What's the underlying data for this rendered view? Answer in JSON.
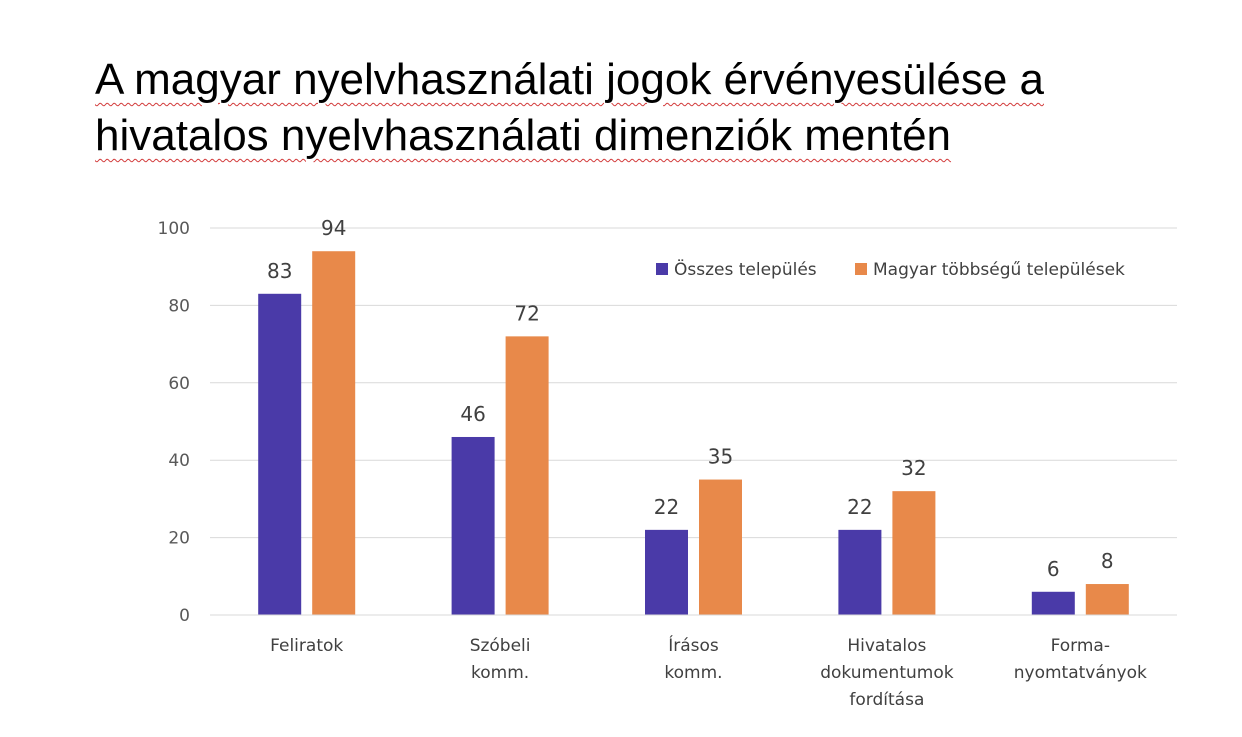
{
  "title_lines": [
    "A magyar nyelvhasználati jogok érvényesülése a",
    "hivatalos nyelvhasználati dimenziók mentén"
  ],
  "chart_data": {
    "type": "bar",
    "categories": [
      [
        "Feliratok"
      ],
      [
        "Szóbeli",
        "komm."
      ],
      [
        "Írásos",
        "komm."
      ],
      [
        "Hivatalos",
        "dokumentumok",
        "fordítása"
      ],
      [
        "Forma-",
        "nyomtatványok"
      ]
    ],
    "series": [
      {
        "name": "Összes település",
        "color": "#4a3aa8",
        "values": [
          83,
          46,
          22,
          22,
          6
        ]
      },
      {
        "name": "Magyar többségű települések",
        "color": "#e8894a",
        "values": [
          94,
          72,
          35,
          32,
          8
        ]
      }
    ],
    "ylim": [
      0,
      100
    ],
    "yticks": [
      0,
      20,
      40,
      60,
      80,
      100
    ],
    "grid": true,
    "legend_position": "top-right"
  }
}
